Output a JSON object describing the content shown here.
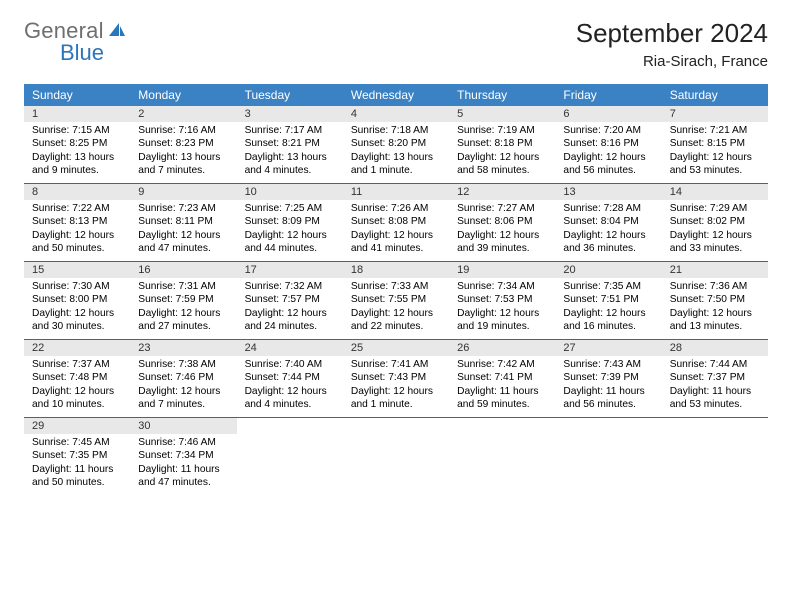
{
  "logo": {
    "general": "General",
    "blue": "Blue"
  },
  "title": "September 2024",
  "location": "Ria-Sirach, France",
  "colors": {
    "header_bg": "#3a82c4",
    "header_text": "#ffffff",
    "daynum_bg": "#e8e8e8",
    "rule": "#2e6aa8",
    "logo_gray": "#6f6f6f",
    "logo_blue": "#2a76bd"
  },
  "day_headers": [
    "Sunday",
    "Monday",
    "Tuesday",
    "Wednesday",
    "Thursday",
    "Friday",
    "Saturday"
  ],
  "weeks": [
    [
      {
        "num": "1",
        "sunrise": "Sunrise: 7:15 AM",
        "sunset": "Sunset: 8:25 PM",
        "daylight": "Daylight: 13 hours and 9 minutes."
      },
      {
        "num": "2",
        "sunrise": "Sunrise: 7:16 AM",
        "sunset": "Sunset: 8:23 PM",
        "daylight": "Daylight: 13 hours and 7 minutes."
      },
      {
        "num": "3",
        "sunrise": "Sunrise: 7:17 AM",
        "sunset": "Sunset: 8:21 PM",
        "daylight": "Daylight: 13 hours and 4 minutes."
      },
      {
        "num": "4",
        "sunrise": "Sunrise: 7:18 AM",
        "sunset": "Sunset: 8:20 PM",
        "daylight": "Daylight: 13 hours and 1 minute."
      },
      {
        "num": "5",
        "sunrise": "Sunrise: 7:19 AM",
        "sunset": "Sunset: 8:18 PM",
        "daylight": "Daylight: 12 hours and 58 minutes."
      },
      {
        "num": "6",
        "sunrise": "Sunrise: 7:20 AM",
        "sunset": "Sunset: 8:16 PM",
        "daylight": "Daylight: 12 hours and 56 minutes."
      },
      {
        "num": "7",
        "sunrise": "Sunrise: 7:21 AM",
        "sunset": "Sunset: 8:15 PM",
        "daylight": "Daylight: 12 hours and 53 minutes."
      }
    ],
    [
      {
        "num": "8",
        "sunrise": "Sunrise: 7:22 AM",
        "sunset": "Sunset: 8:13 PM",
        "daylight": "Daylight: 12 hours and 50 minutes."
      },
      {
        "num": "9",
        "sunrise": "Sunrise: 7:23 AM",
        "sunset": "Sunset: 8:11 PM",
        "daylight": "Daylight: 12 hours and 47 minutes."
      },
      {
        "num": "10",
        "sunrise": "Sunrise: 7:25 AM",
        "sunset": "Sunset: 8:09 PM",
        "daylight": "Daylight: 12 hours and 44 minutes."
      },
      {
        "num": "11",
        "sunrise": "Sunrise: 7:26 AM",
        "sunset": "Sunset: 8:08 PM",
        "daylight": "Daylight: 12 hours and 41 minutes."
      },
      {
        "num": "12",
        "sunrise": "Sunrise: 7:27 AM",
        "sunset": "Sunset: 8:06 PM",
        "daylight": "Daylight: 12 hours and 39 minutes."
      },
      {
        "num": "13",
        "sunrise": "Sunrise: 7:28 AM",
        "sunset": "Sunset: 8:04 PM",
        "daylight": "Daylight: 12 hours and 36 minutes."
      },
      {
        "num": "14",
        "sunrise": "Sunrise: 7:29 AM",
        "sunset": "Sunset: 8:02 PM",
        "daylight": "Daylight: 12 hours and 33 minutes."
      }
    ],
    [
      {
        "num": "15",
        "sunrise": "Sunrise: 7:30 AM",
        "sunset": "Sunset: 8:00 PM",
        "daylight": "Daylight: 12 hours and 30 minutes."
      },
      {
        "num": "16",
        "sunrise": "Sunrise: 7:31 AM",
        "sunset": "Sunset: 7:59 PM",
        "daylight": "Daylight: 12 hours and 27 minutes."
      },
      {
        "num": "17",
        "sunrise": "Sunrise: 7:32 AM",
        "sunset": "Sunset: 7:57 PM",
        "daylight": "Daylight: 12 hours and 24 minutes."
      },
      {
        "num": "18",
        "sunrise": "Sunrise: 7:33 AM",
        "sunset": "Sunset: 7:55 PM",
        "daylight": "Daylight: 12 hours and 22 minutes."
      },
      {
        "num": "19",
        "sunrise": "Sunrise: 7:34 AM",
        "sunset": "Sunset: 7:53 PM",
        "daylight": "Daylight: 12 hours and 19 minutes."
      },
      {
        "num": "20",
        "sunrise": "Sunrise: 7:35 AM",
        "sunset": "Sunset: 7:51 PM",
        "daylight": "Daylight: 12 hours and 16 minutes."
      },
      {
        "num": "21",
        "sunrise": "Sunrise: 7:36 AM",
        "sunset": "Sunset: 7:50 PM",
        "daylight": "Daylight: 12 hours and 13 minutes."
      }
    ],
    [
      {
        "num": "22",
        "sunrise": "Sunrise: 7:37 AM",
        "sunset": "Sunset: 7:48 PM",
        "daylight": "Daylight: 12 hours and 10 minutes."
      },
      {
        "num": "23",
        "sunrise": "Sunrise: 7:38 AM",
        "sunset": "Sunset: 7:46 PM",
        "daylight": "Daylight: 12 hours and 7 minutes."
      },
      {
        "num": "24",
        "sunrise": "Sunrise: 7:40 AM",
        "sunset": "Sunset: 7:44 PM",
        "daylight": "Daylight: 12 hours and 4 minutes."
      },
      {
        "num": "25",
        "sunrise": "Sunrise: 7:41 AM",
        "sunset": "Sunset: 7:43 PM",
        "daylight": "Daylight: 12 hours and 1 minute."
      },
      {
        "num": "26",
        "sunrise": "Sunrise: 7:42 AM",
        "sunset": "Sunset: 7:41 PM",
        "daylight": "Daylight: 11 hours and 59 minutes."
      },
      {
        "num": "27",
        "sunrise": "Sunrise: 7:43 AM",
        "sunset": "Sunset: 7:39 PM",
        "daylight": "Daylight: 11 hours and 56 minutes."
      },
      {
        "num": "28",
        "sunrise": "Sunrise: 7:44 AM",
        "sunset": "Sunset: 7:37 PM",
        "daylight": "Daylight: 11 hours and 53 minutes."
      }
    ],
    [
      {
        "num": "29",
        "sunrise": "Sunrise: 7:45 AM",
        "sunset": "Sunset: 7:35 PM",
        "daylight": "Daylight: 11 hours and 50 minutes."
      },
      {
        "num": "30",
        "sunrise": "Sunrise: 7:46 AM",
        "sunset": "Sunset: 7:34 PM",
        "daylight": "Daylight: 11 hours and 47 minutes."
      },
      null,
      null,
      null,
      null,
      null
    ]
  ]
}
